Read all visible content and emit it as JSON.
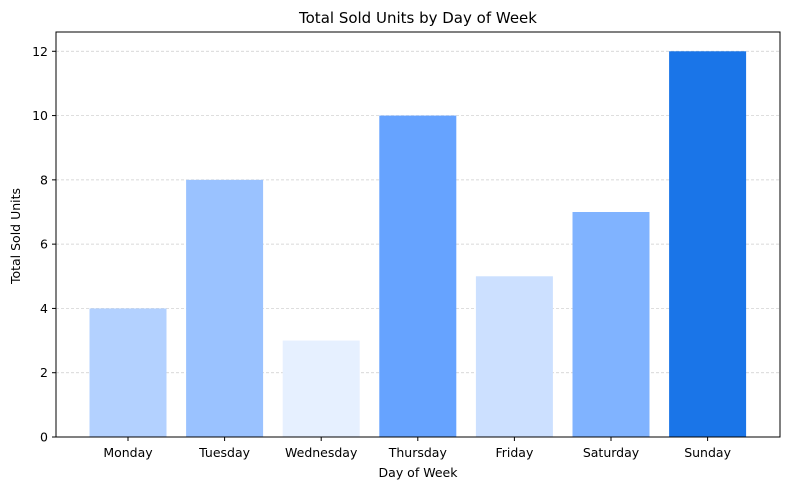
{
  "chart_data": {
    "type": "bar",
    "title": "Total Sold Units by Day of Week",
    "xlabel": "Day of Week",
    "ylabel": "Total Sold Units",
    "categories": [
      "Monday",
      "Tuesday",
      "Wednesday",
      "Thursday",
      "Friday",
      "Saturday",
      "Sunday"
    ],
    "values": [
      4,
      8,
      3,
      10,
      5,
      7,
      12
    ],
    "colors": [
      "#b3d1ff",
      "#9ac2ff",
      "#e6f0ff",
      "#66a3ff",
      "#cce0ff",
      "#80b3ff",
      "#1a75e8"
    ],
    "ylim": [
      0,
      12.6
    ],
    "yticks": [
      0,
      2,
      4,
      6,
      8,
      10,
      12
    ],
    "grid": "horizontal dashed",
    "legend": "none"
  }
}
